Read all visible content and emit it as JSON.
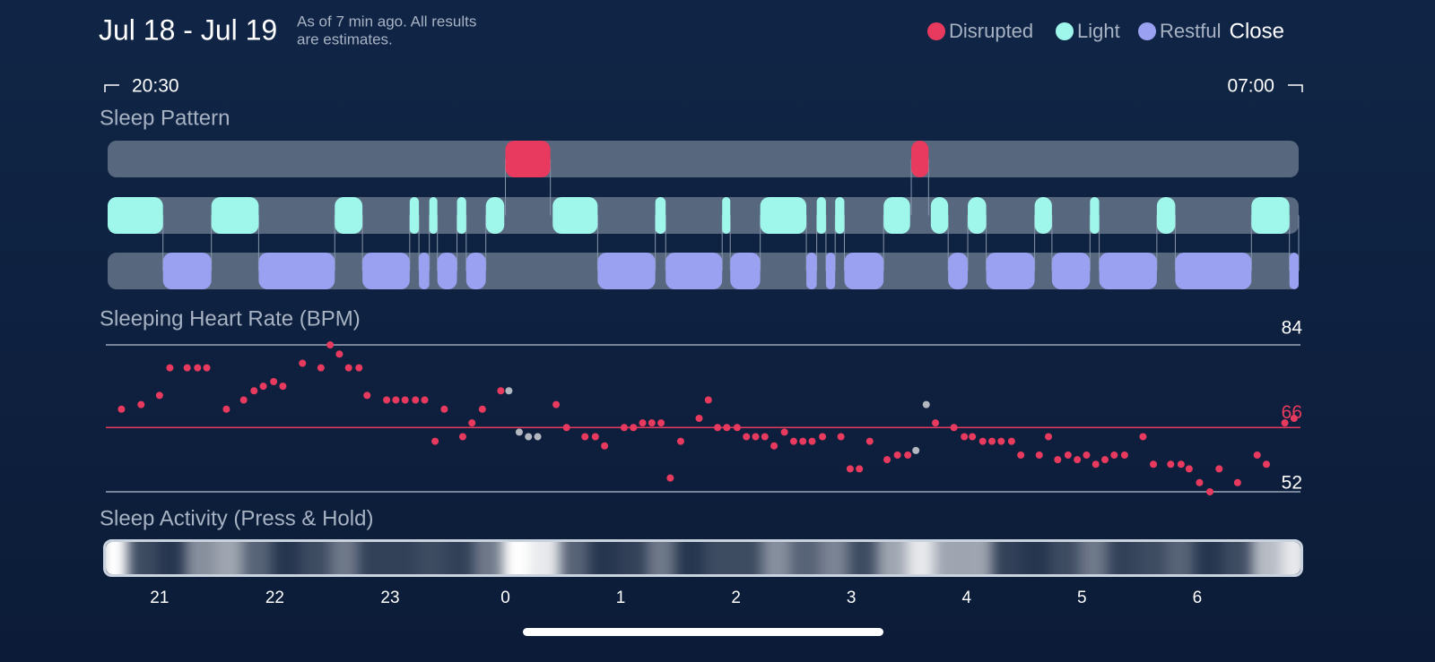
{
  "header": {
    "date_range": "Jul 18 - Jul 19",
    "note": [
      "As of 7 min ago. All results",
      "are estimates."
    ],
    "close": "Close"
  },
  "time_range": {
    "start": "20:30",
    "end": "07:00"
  },
  "chart_data": [
    {
      "type": "timeline",
      "title": "Sleep Pattern",
      "xlim": [
        20.55,
        30.88
      ],
      "series": [
        {
          "name": "Disrupted",
          "color": "#e83a5e",
          "start": [
            24.0,
            27.52
          ],
          "end": [
            24.39,
            27.67
          ]
        },
        {
          "name": "Light",
          "color": "#9ff7eb",
          "start": [
            20.55,
            21.45,
            22.52,
            23.17,
            23.34,
            23.58,
            23.83,
            24.41,
            25.3,
            25.88,
            26.21,
            26.7,
            26.86,
            27.28,
            27.69,
            28.01,
            28.59,
            29.07,
            29.65,
            30.47
          ],
          "end": [
            21.03,
            21.86,
            22.76,
            23.25,
            23.41,
            23.66,
            23.99,
            24.8,
            25.39,
            25.95,
            26.61,
            26.78,
            26.94,
            27.51,
            27.84,
            28.17,
            28.74,
            29.15,
            29.81,
            30.8
          ]
        },
        {
          "name": "Restful",
          "color": "#9ba1f1",
          "start": [
            21.03,
            21.86,
            22.76,
            23.25,
            23.41,
            23.66,
            24.8,
            25.39,
            25.95,
            26.61,
            26.78,
            26.94,
            27.84,
            28.17,
            28.74,
            29.15,
            29.81,
            30.8
          ],
          "end": [
            21.45,
            22.52,
            23.17,
            23.34,
            23.58,
            23.83,
            25.3,
            25.88,
            26.21,
            26.7,
            26.86,
            27.28,
            28.01,
            28.59,
            29.07,
            29.65,
            30.47,
            30.88
          ]
        }
      ]
    },
    {
      "type": "scatter",
      "title": "Sleeping Heart Rate (BPM)",
      "xlim": [
        20.55,
        30.88
      ],
      "ylim": [
        52,
        84
      ],
      "yticks": [
        52,
        84
      ],
      "reference": {
        "value": 66,
        "color": "#e83a5e"
      },
      "series": [
        {
          "color": "#e83a5e",
          "x": [
            20.67,
            20.84,
            21.0,
            21.09,
            21.24,
            21.33,
            21.41,
            21.58,
            21.73,
            21.82,
            21.9,
            21.99,
            22.07,
            22.24,
            22.4,
            22.48,
            22.56,
            22.64,
            22.73,
            22.8,
            22.97,
            23.05,
            23.13,
            23.22,
            23.3,
            23.39,
            23.47,
            23.63,
            23.71,
            23.8,
            23.96,
            24.44,
            24.53,
            24.69,
            24.78,
            24.86,
            25.03,
            25.11,
            25.19,
            25.27,
            25.35,
            25.43,
            25.52,
            25.68,
            25.76,
            25.84,
            25.92,
            26.01,
            26.09,
            26.17,
            26.25,
            26.33,
            26.42,
            26.5,
            26.58,
            26.66,
            26.75,
            26.91,
            26.99,
            27.07,
            27.16,
            27.31,
            27.4,
            27.49,
            27.73,
            27.89,
            27.98,
            28.05,
            28.14,
            28.22,
            28.3,
            28.39,
            28.47,
            28.63,
            28.71,
            28.79,
            28.88,
            28.96,
            29.04,
            29.12,
            29.2,
            29.28,
            29.37,
            29.53,
            29.62,
            29.77,
            29.86,
            29.93,
            30.02,
            30.11,
            30.19,
            30.35,
            30.52,
            30.6,
            30.76,
            30.84
          ],
          "values": [
            70,
            71,
            73,
            79,
            79,
            79,
            79,
            70,
            72,
            74,
            75,
            76,
            75,
            80,
            79,
            84,
            82,
            79,
            79,
            73,
            72,
            72,
            72,
            72,
            72,
            63,
            70,
            64,
            67,
            70,
            74,
            71,
            66,
            64,
            64,
            62,
            66,
            66,
            67,
            67,
            67,
            55,
            63,
            68,
            72,
            66,
            66,
            66,
            64,
            64,
            64,
            62,
            65,
            63,
            63,
            63,
            64,
            64,
            57,
            57,
            63,
            59,
            60,
            60,
            67,
            66,
            64,
            64,
            63,
            63,
            63,
            63,
            60,
            60,
            64,
            59,
            60,
            59,
            60,
            58,
            59,
            60,
            60,
            64,
            58,
            58,
            58,
            57,
            54,
            52,
            57,
            54,
            60,
            58,
            67,
            68
          ]
        },
        {
          "color": "#b3b7bf",
          "x": [
            24.03,
            24.12,
            24.2,
            24.28,
            27.56,
            27.65
          ],
          "values": [
            74,
            65,
            64,
            64,
            61,
            71
          ]
        }
      ]
    },
    {
      "type": "heatstrip",
      "title": "Sleep Activity (Press & Hold)",
      "xlim": [
        20.55,
        30.88
      ],
      "xticks": [
        21,
        22,
        23,
        {
          "value": 24,
          "label": "0"
        },
        {
          "value": 25,
          "label": "1"
        },
        {
          "value": 26,
          "label": "2"
        },
        {
          "value": 27,
          "label": "3"
        },
        {
          "value": 28,
          "label": "4"
        },
        {
          "value": 29,
          "label": "5"
        },
        {
          "value": 30,
          "label": "6"
        }
      ],
      "x": [
        20.6,
        20.85,
        21.1,
        21.35,
        21.6,
        21.85,
        22.1,
        22.35,
        22.6,
        22.85,
        23.1,
        23.35,
        23.6,
        23.85,
        24.1,
        24.35,
        24.6,
        24.85,
        25.1,
        25.35,
        25.6,
        25.85,
        26.1,
        26.35,
        26.6,
        26.85,
        27.1,
        27.35,
        27.6,
        27.85,
        28.1,
        28.35,
        28.6,
        28.85,
        29.1,
        29.35,
        29.6,
        29.85,
        30.1,
        30.35,
        30.6,
        30.85
      ],
      "values": [
        1.0,
        0.2,
        0.1,
        0.5,
        0.6,
        0.3,
        0.1,
        0.2,
        0.4,
        0.15,
        0.15,
        0.2,
        0.15,
        0.4,
        1.0,
        0.9,
        0.3,
        0.1,
        0.15,
        0.4,
        0.1,
        0.2,
        0.2,
        0.5,
        0.3,
        0.45,
        0.2,
        0.6,
        0.9,
        0.6,
        0.6,
        0.15,
        0.1,
        0.2,
        0.4,
        0.15,
        0.2,
        0.3,
        0.1,
        0.2,
        0.7,
        0.9
      ],
      "color": "#ffffff"
    }
  ]
}
